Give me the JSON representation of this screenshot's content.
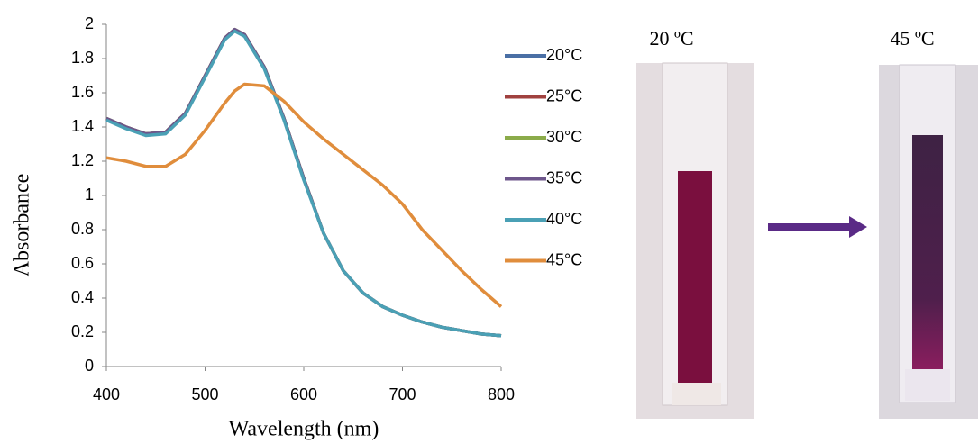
{
  "chart_data": {
    "type": "line",
    "x_label": "Wavelength (nm)",
    "y_label": "Absorbance",
    "x": [
      400,
      420,
      440,
      460,
      480,
      500,
      520,
      530,
      540,
      560,
      580,
      600,
      620,
      640,
      660,
      680,
      700,
      720,
      740,
      760,
      780,
      800
    ],
    "series": [
      {
        "name": "20°C",
        "color": "#4a6fa5",
        "values": [
          1.45,
          1.4,
          1.36,
          1.37,
          1.48,
          1.7,
          1.92,
          1.97,
          1.94,
          1.75,
          1.45,
          1.1,
          0.78,
          0.56,
          0.43,
          0.35,
          0.3,
          0.26,
          0.23,
          0.21,
          0.19,
          0.18
        ]
      },
      {
        "name": "25°C",
        "color": "#a0413f",
        "values": [
          1.45,
          1.4,
          1.36,
          1.37,
          1.48,
          1.7,
          1.92,
          1.97,
          1.94,
          1.75,
          1.45,
          1.1,
          0.78,
          0.56,
          0.43,
          0.35,
          0.3,
          0.26,
          0.23,
          0.21,
          0.19,
          0.18
        ]
      },
      {
        "name": "30°C",
        "color": "#8bab4a",
        "values": [
          1.45,
          1.4,
          1.36,
          1.37,
          1.48,
          1.7,
          1.92,
          1.97,
          1.94,
          1.75,
          1.45,
          1.1,
          0.78,
          0.56,
          0.43,
          0.35,
          0.3,
          0.26,
          0.23,
          0.21,
          0.19,
          0.18
        ]
      },
      {
        "name": "35°C",
        "color": "#6d568b",
        "values": [
          1.45,
          1.4,
          1.36,
          1.37,
          1.48,
          1.7,
          1.92,
          1.97,
          1.94,
          1.75,
          1.45,
          1.1,
          0.78,
          0.56,
          0.43,
          0.35,
          0.3,
          0.26,
          0.23,
          0.21,
          0.19,
          0.18
        ]
      },
      {
        "name": "40°C",
        "color": "#4aa0b5",
        "values": [
          1.44,
          1.39,
          1.35,
          1.36,
          1.47,
          1.69,
          1.91,
          1.96,
          1.93,
          1.74,
          1.44,
          1.09,
          0.78,
          0.56,
          0.43,
          0.35,
          0.3,
          0.26,
          0.23,
          0.21,
          0.19,
          0.18
        ]
      },
      {
        "name": "45°C",
        "color": "#e08d3c",
        "values": [
          1.22,
          1.2,
          1.17,
          1.17,
          1.24,
          1.38,
          1.54,
          1.61,
          1.65,
          1.64,
          1.55,
          1.43,
          1.33,
          1.24,
          1.15,
          1.06,
          0.95,
          0.8,
          0.68,
          0.56,
          0.45,
          0.35
        ]
      }
    ],
    "xlim": [
      400,
      800
    ],
    "xticks": [
      400,
      500,
      600,
      700,
      800
    ],
    "ylim": [
      0,
      2
    ],
    "yticks": [
      0,
      0.2,
      0.4,
      0.6,
      0.8,
      1,
      1.2,
      1.4,
      1.6,
      1.8,
      2
    ],
    "grid": false,
    "legend": "right"
  },
  "photo_labels": [
    "20 ºC",
    "45 ºC"
  ]
}
